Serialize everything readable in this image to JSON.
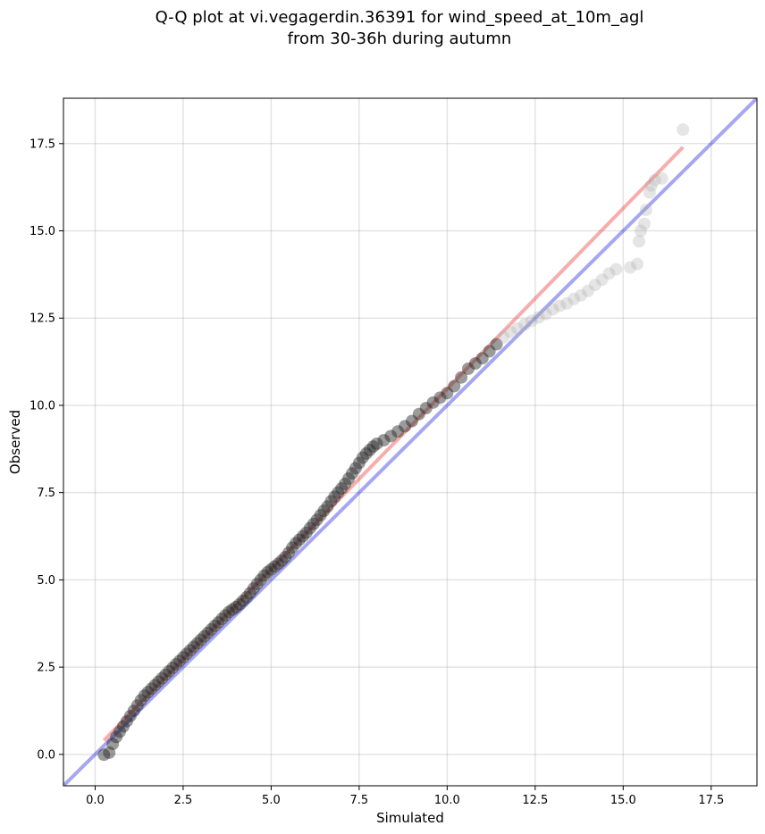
{
  "chart_data": {
    "type": "scatter",
    "title_line1": "Q-Q plot at vi.vegagerdin.36391 for wind_speed_at_10m_agl",
    "title_line2": "from 30-36h during autumn",
    "xlabel": "Simulated",
    "ylabel": "Observed",
    "xlim": [
      -0.9,
      18.8
    ],
    "ylim": [
      -0.9,
      18.8
    ],
    "x_ticks": [
      "0.0",
      "2.5",
      "5.0",
      "7.5",
      "10.0",
      "12.5",
      "15.0",
      "17.5"
    ],
    "y_ticks": [
      "0.0",
      "2.5",
      "5.0",
      "7.5",
      "10.0",
      "12.5",
      "15.0",
      "17.5"
    ],
    "x_tick_values": [
      0,
      2.5,
      5,
      7.5,
      10,
      12.5,
      15,
      17.5
    ],
    "y_tick_values": [
      0,
      2.5,
      5,
      7.5,
      10,
      12.5,
      15,
      17.5
    ],
    "grid": true,
    "identity_line": {
      "color": "#0000dd",
      "from": [
        -0.9,
        -0.9
      ],
      "to": [
        18.8,
        18.8
      ]
    },
    "fit_line": {
      "color": "#ee3333",
      "from": [
        0.25,
        0.4
      ],
      "to": [
        16.7,
        17.4
      ]
    },
    "points": [
      [
        0.25,
        -0.01
      ],
      [
        0.4,
        0.05
      ],
      [
        0.5,
        0.3
      ],
      [
        0.6,
        0.5
      ],
      [
        0.7,
        0.65
      ],
      [
        0.8,
        0.8
      ],
      [
        0.9,
        0.95
      ],
      [
        1.0,
        1.1
      ],
      [
        1.1,
        1.25
      ],
      [
        1.2,
        1.4
      ],
      [
        1.3,
        1.55
      ],
      [
        1.4,
        1.68
      ],
      [
        1.5,
        1.78
      ],
      [
        1.6,
        1.88
      ],
      [
        1.7,
        1.98
      ],
      [
        1.8,
        2.08
      ],
      [
        1.9,
        2.18
      ],
      [
        2.0,
        2.28
      ],
      [
        2.1,
        2.38
      ],
      [
        2.2,
        2.48
      ],
      [
        2.3,
        2.58
      ],
      [
        2.4,
        2.68
      ],
      [
        2.5,
        2.78
      ],
      [
        2.6,
        2.88
      ],
      [
        2.7,
        2.98
      ],
      [
        2.8,
        3.08
      ],
      [
        2.9,
        3.18
      ],
      [
        3.0,
        3.28
      ],
      [
        3.1,
        3.38
      ],
      [
        3.2,
        3.48
      ],
      [
        3.3,
        3.58
      ],
      [
        3.4,
        3.68
      ],
      [
        3.5,
        3.78
      ],
      [
        3.6,
        3.88
      ],
      [
        3.7,
        3.98
      ],
      [
        3.8,
        4.08
      ],
      [
        3.9,
        4.15
      ],
      [
        4.0,
        4.22
      ],
      [
        4.1,
        4.3
      ],
      [
        4.2,
        4.4
      ],
      [
        4.3,
        4.5
      ],
      [
        4.4,
        4.62
      ],
      [
        4.5,
        4.75
      ],
      [
        4.6,
        4.88
      ],
      [
        4.7,
        5.0
      ],
      [
        4.8,
        5.12
      ],
      [
        4.9,
        5.22
      ],
      [
        5.0,
        5.3
      ],
      [
        5.1,
        5.38
      ],
      [
        5.2,
        5.46
      ],
      [
        5.3,
        5.55
      ],
      [
        5.4,
        5.65
      ],
      [
        5.5,
        5.78
      ],
      [
        5.6,
        5.92
      ],
      [
        5.7,
        6.05
      ],
      [
        5.8,
        6.15
      ],
      [
        5.9,
        6.25
      ],
      [
        6.0,
        6.35
      ],
      [
        6.1,
        6.48
      ],
      [
        6.2,
        6.6
      ],
      [
        6.3,
        6.72
      ],
      [
        6.4,
        6.85
      ],
      [
        6.5,
        6.98
      ],
      [
        6.6,
        7.1
      ],
      [
        6.7,
        7.25
      ],
      [
        6.8,
        7.38
      ],
      [
        6.9,
        7.5
      ],
      [
        7.0,
        7.62
      ],
      [
        7.1,
        7.75
      ],
      [
        7.2,
        7.9
      ],
      [
        7.3,
        8.05
      ],
      [
        7.4,
        8.2
      ],
      [
        7.5,
        8.35
      ],
      [
        7.6,
        8.5
      ],
      [
        7.7,
        8.62
      ],
      [
        7.8,
        8.72
      ],
      [
        7.9,
        8.82
      ],
      [
        8.0,
        8.9
      ],
      [
        8.2,
        9.0
      ],
      [
        8.4,
        9.12
      ],
      [
        8.6,
        9.25
      ],
      [
        8.8,
        9.4
      ],
      [
        9.0,
        9.55
      ],
      [
        9.2,
        9.75
      ],
      [
        9.4,
        9.92
      ],
      [
        9.6,
        10.08
      ],
      [
        9.8,
        10.22
      ],
      [
        10.0,
        10.35
      ],
      [
        10.2,
        10.55
      ],
      [
        10.4,
        10.8
      ],
      [
        10.6,
        11.05
      ],
      [
        10.8,
        11.2
      ],
      [
        11.0,
        11.35
      ],
      [
        11.2,
        11.55
      ],
      [
        11.4,
        11.75
      ],
      [
        11.6,
        11.95
      ],
      [
        11.8,
        12.1
      ],
      [
        12.0,
        12.2
      ],
      [
        12.2,
        12.32
      ],
      [
        12.4,
        12.42
      ],
      [
        12.6,
        12.52
      ],
      [
        12.8,
        12.62
      ],
      [
        13.0,
        12.75
      ],
      [
        13.2,
        12.85
      ],
      [
        13.4,
        12.92
      ],
      [
        13.6,
        13.05
      ],
      [
        13.8,
        13.15
      ],
      [
        14.0,
        13.28
      ],
      [
        14.2,
        13.45
      ],
      [
        14.4,
        13.6
      ],
      [
        14.6,
        13.78
      ],
      [
        14.8,
        13.9
      ],
      [
        15.2,
        13.95
      ],
      [
        15.4,
        14.05
      ],
      [
        15.45,
        14.7
      ],
      [
        15.5,
        15.0
      ],
      [
        15.6,
        15.2
      ],
      [
        15.65,
        15.6
      ],
      [
        15.75,
        16.1
      ],
      [
        15.8,
        16.3
      ],
      [
        15.9,
        16.45
      ],
      [
        16.1,
        16.5
      ],
      [
        16.7,
        17.9
      ]
    ]
  }
}
